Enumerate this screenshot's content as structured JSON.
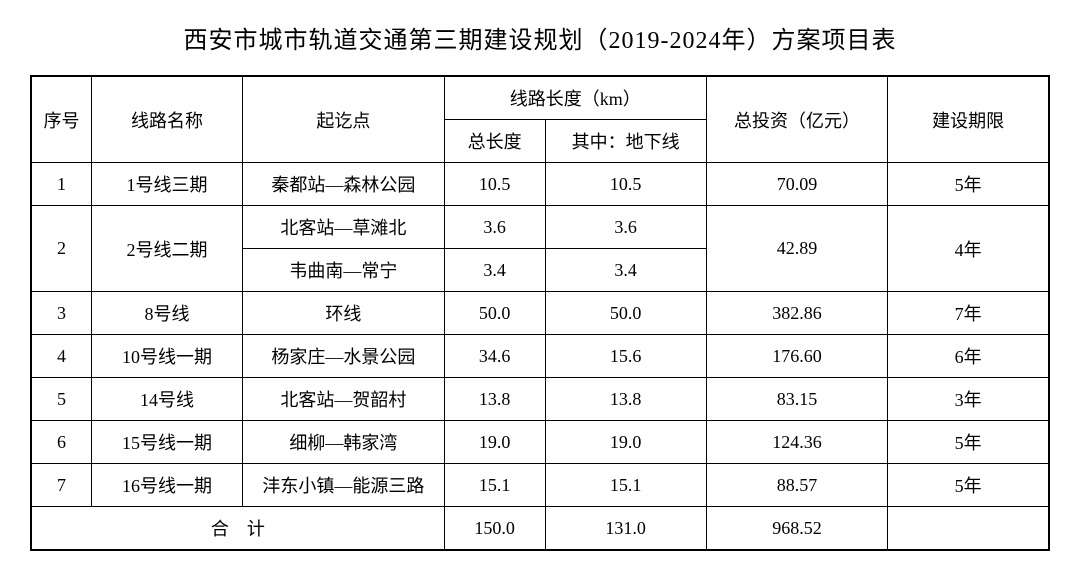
{
  "title": "西安市城市轨道交通第三期建设规划（2019-2024年）方案项目表",
  "headers": {
    "seq": "序号",
    "line_name": "线路名称",
    "route": "起讫点",
    "length_group": "线路长度（km）",
    "total_length": "总长度",
    "underground_length": "其中：地下线",
    "investment": "总投资（亿元）",
    "period": "建设期限"
  },
  "rows": [
    {
      "seq": "1",
      "line_name": "1号线三期",
      "routes": [
        "秦都站—森林公园"
      ],
      "total_lengths": [
        "10.5"
      ],
      "underground_lengths": [
        "10.5"
      ],
      "investment": "70.09",
      "period": "5年"
    },
    {
      "seq": "2",
      "line_name": "2号线二期",
      "routes": [
        "北客站—草滩北",
        "韦曲南—常宁"
      ],
      "total_lengths": [
        "3.6",
        "3.4"
      ],
      "underground_lengths": [
        "3.6",
        "3.4"
      ],
      "investment": "42.89",
      "period": "4年"
    },
    {
      "seq": "3",
      "line_name": "8号线",
      "routes": [
        "环线"
      ],
      "total_lengths": [
        "50.0"
      ],
      "underground_lengths": [
        "50.0"
      ],
      "investment": "382.86",
      "period": "7年"
    },
    {
      "seq": "4",
      "line_name": "10号线一期",
      "routes": [
        "杨家庄—水景公园"
      ],
      "total_lengths": [
        "34.6"
      ],
      "underground_lengths": [
        "15.6"
      ],
      "investment": "176.60",
      "period": "6年"
    },
    {
      "seq": "5",
      "line_name": "14号线",
      "routes": [
        "北客站—贺韶村"
      ],
      "total_lengths": [
        "13.8"
      ],
      "underground_lengths": [
        "13.8"
      ],
      "investment": "83.15",
      "period": "3年"
    },
    {
      "seq": "6",
      "line_name": "15号线一期",
      "routes": [
        "细柳—韩家湾"
      ],
      "total_lengths": [
        "19.0"
      ],
      "underground_lengths": [
        "19.0"
      ],
      "investment": "124.36",
      "period": "5年"
    },
    {
      "seq": "7",
      "line_name": "16号线一期",
      "routes": [
        "沣东小镇—能源三路"
      ],
      "total_lengths": [
        "15.1"
      ],
      "underground_lengths": [
        "15.1"
      ],
      "investment": "88.57",
      "period": "5年"
    }
  ],
  "total": {
    "label": "合　计",
    "total_length": "150.0",
    "underground_length": "131.0",
    "investment": "968.52",
    "period": ""
  },
  "styling": {
    "background_color": "#ffffff",
    "border_color": "#000000",
    "text_color": "#000000",
    "title_fontsize": 24,
    "cell_fontsize": 18,
    "outer_border_width": 2,
    "inner_border_width": 1,
    "font_family": "SimSun"
  }
}
